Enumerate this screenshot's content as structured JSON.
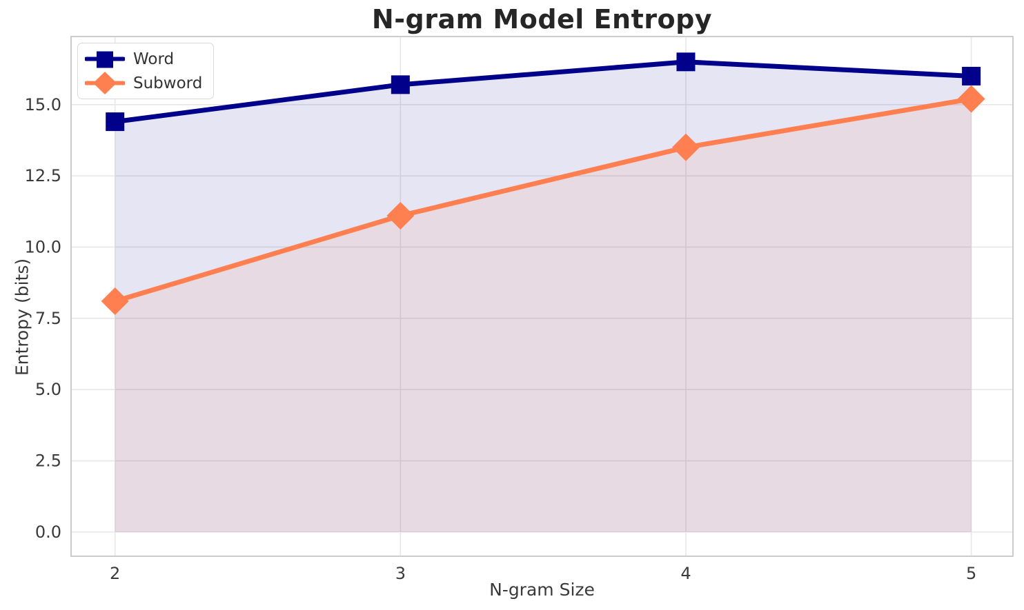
{
  "chart_data": {
    "type": "line",
    "title": "N-gram Model Entropy",
    "xlabel": "N-gram Size",
    "ylabel": "Entropy (bits)",
    "x": [
      2,
      3,
      4,
      5
    ],
    "xtick_labels": [
      "2",
      "3",
      "4",
      "5"
    ],
    "ytick_values": [
      0.0,
      2.5,
      5.0,
      7.5,
      10.0,
      12.5,
      15.0
    ],
    "ytick_labels": [
      "0.0",
      "2.5",
      "5.0",
      "7.5",
      "10.0",
      "12.5",
      "15.0"
    ],
    "xlim": [
      1.846,
      5.146
    ],
    "ylim": [
      -0.85,
      17.39
    ],
    "grid": true,
    "legend_position": "upper-left",
    "series": [
      {
        "name": "Word",
        "values": [
          14.4,
          15.7,
          16.5,
          16.0
        ],
        "color": "#00008B",
        "marker": "square",
        "fill_alpha": 0.1,
        "fill_to_zero": true
      },
      {
        "name": "Subword",
        "values": [
          8.1,
          11.1,
          13.5,
          15.2
        ],
        "color": "#FF7F50",
        "marker": "diamond",
        "fill_alpha": 0.1,
        "fill_to_zero": true
      }
    ],
    "colors": {
      "grid": "#e7e7e7",
      "spine": "#cccccc",
      "tick_text": "#3a3a3a",
      "title_text": "#262626"
    }
  }
}
